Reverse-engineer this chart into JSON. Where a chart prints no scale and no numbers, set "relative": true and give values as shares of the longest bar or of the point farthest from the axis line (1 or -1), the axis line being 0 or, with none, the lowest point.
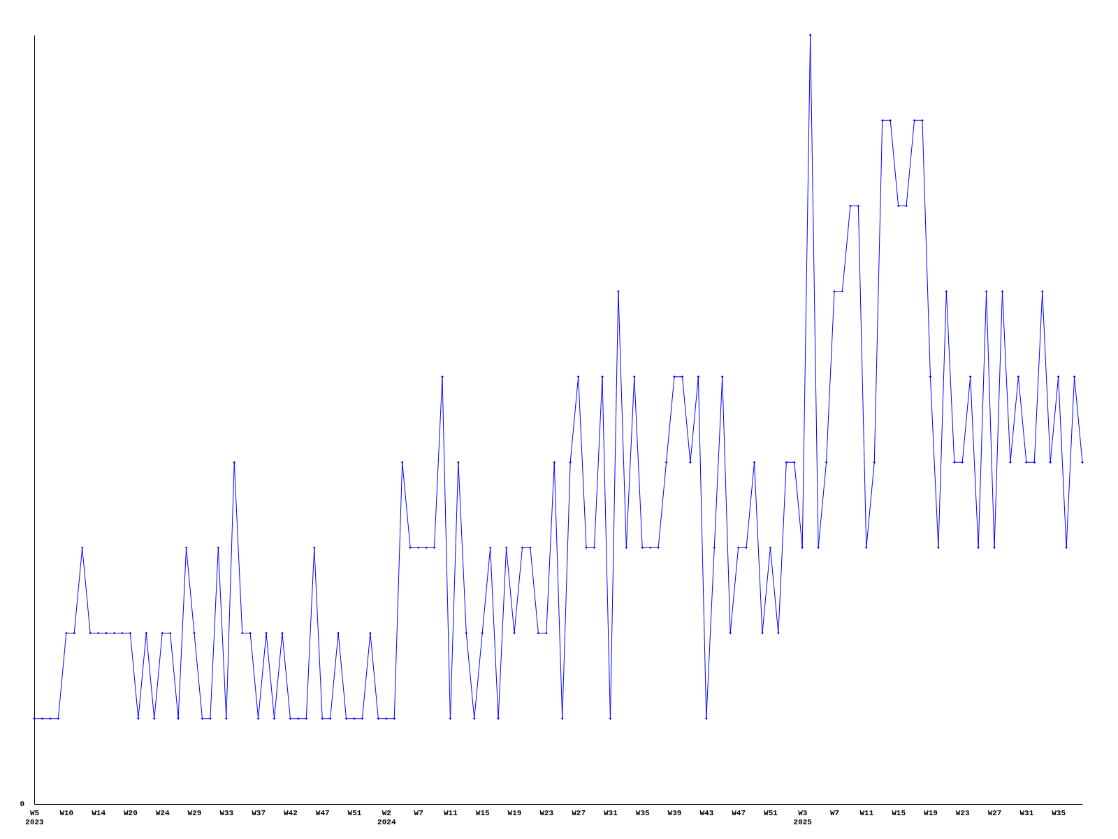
{
  "chart_data": {
    "type": "line",
    "relative": true,
    "categories": [
      "W5\n2023",
      null,
      null,
      null,
      "W10",
      null,
      null,
      null,
      "W14",
      null,
      null,
      null,
      "W20",
      null,
      null,
      null,
      "W24",
      null,
      null,
      null,
      "W29",
      null,
      null,
      null,
      "W33",
      null,
      null,
      null,
      "W37",
      null,
      null,
      null,
      "W42",
      null,
      null,
      null,
      "W47",
      null,
      null,
      null,
      "W51",
      null,
      null,
      null,
      "W2\n2024",
      null,
      null,
      null,
      "W7",
      null,
      null,
      null,
      "W11",
      null,
      null,
      null,
      "W15",
      null,
      null,
      null,
      "W19",
      null,
      null,
      null,
      "W23",
      null,
      null,
      null,
      "W27",
      null,
      null,
      null,
      "W31",
      null,
      null,
      null,
      "W35",
      null,
      null,
      null,
      "W39",
      null,
      null,
      null,
      "W43",
      null,
      null,
      null,
      "W47",
      null,
      null,
      null,
      "W51",
      null,
      null,
      null,
      "W3\n2025",
      null,
      null,
      null,
      "W7",
      null,
      null,
      null,
      "W11",
      null,
      null,
      null,
      "W15",
      null,
      null,
      null,
      "W19",
      null,
      null,
      null,
      "W23",
      null,
      null,
      null,
      "W27",
      null,
      null,
      null,
      "W31",
      null,
      null,
      null,
      "W35",
      null,
      null,
      null
    ],
    "series": [
      {
        "color": "#0000ff",
        "values": [
          0.1111,
          0.1111,
          0.1111,
          0.1111,
          0.2222,
          0.2222,
          0.3333,
          0.2222,
          0.2222,
          0.2222,
          0.2222,
          0.2222,
          0.2222,
          0.1111,
          0.2222,
          0.1111,
          0.2222,
          0.2222,
          0.1111,
          0.3333,
          0.2222,
          0.1111,
          0.1111,
          0.3333,
          0.1111,
          0.4444,
          0.2222,
          0.2222,
          0.1111,
          0.2222,
          0.1111,
          0.2222,
          0.1111,
          0.1111,
          0.1111,
          0.3333,
          0.1111,
          0.1111,
          0.2222,
          0.1111,
          0.1111,
          0.1111,
          0.2222,
          0.1111,
          0.1111,
          0.1111,
          0.4444,
          0.3333,
          0.3333,
          0.3333,
          0.3333,
          0.5556,
          0.1111,
          0.4444,
          0.2222,
          0.1111,
          0.2222,
          0.3333,
          0.1111,
          0.3333,
          0.2222,
          0.3333,
          0.3333,
          0.2222,
          0.2222,
          0.4444,
          0.1111,
          0.4444,
          0.5556,
          0.3333,
          0.3333,
          0.5556,
          0.1111,
          0.6667,
          0.3333,
          0.5556,
          0.3333,
          0.3333,
          0.3333,
          0.4444,
          0.5556,
          0.5556,
          0.4444,
          0.5556,
          0.1111,
          0.3333,
          0.5556,
          0.2222,
          0.3333,
          0.3333,
          0.4444,
          0.2222,
          0.3333,
          0.2222,
          0.4444,
          0.4444,
          0.3333,
          1,
          0.3333,
          0.4444,
          0.6667,
          0.6667,
          0.7778,
          0.7778,
          0.3333,
          0.4444,
          0.8889,
          0.8889,
          0.7778,
          0.7778,
          0.8889,
          0.8889,
          0.5556,
          0.3333,
          0.6667,
          0.4444,
          0.4444,
          0.5556,
          0.3333,
          0.6667,
          0.3333,
          0.6667,
          0.4444,
          0.5556,
          0.4444,
          0.4444,
          0.6667,
          0.4444,
          0.5556,
          0.3333,
          0.5556,
          0.4444
        ]
      }
    ],
    "annotations": [
      "0"
    ],
    "marker": "diamond",
    "grid": false
  }
}
